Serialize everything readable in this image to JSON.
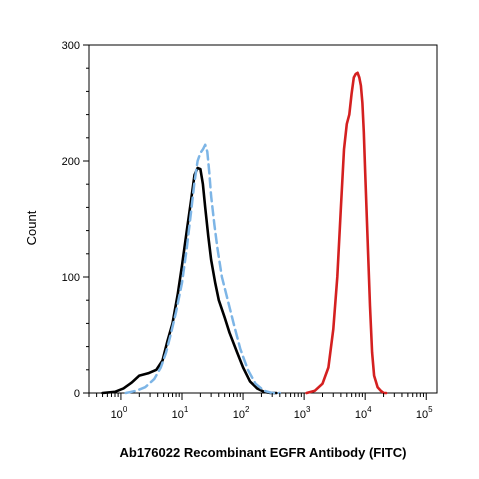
{
  "chart_data": {
    "type": "line",
    "xlabel": "Ab176022 Recombinant EGFR Antibody (FITC)",
    "ylabel": "Count",
    "x_scale": "log",
    "xlim": [
      0.3,
      150000
    ],
    "ylim": [
      0,
      300
    ],
    "grid": false,
    "x_ticks": [
      {
        "base": "10",
        "exp": "0",
        "value": 1
      },
      {
        "base": "10",
        "exp": "1",
        "value": 10
      },
      {
        "base": "10",
        "exp": "2",
        "value": 100
      },
      {
        "base": "10",
        "exp": "3",
        "value": 1000
      },
      {
        "base": "10",
        "exp": "4",
        "value": 10000
      },
      {
        "base": "10",
        "exp": "5",
        "value": 100000
      }
    ],
    "y_ticks": [
      {
        "label": "0",
        "value": 0
      },
      {
        "label": "100",
        "value": 100
      },
      {
        "label": "200",
        "value": 200
      },
      {
        "label": "300",
        "value": 300
      }
    ],
    "series": [
      {
        "color": "#000000",
        "style": "solid",
        "x": [
          0.5,
          0.8,
          1.1,
          1.5,
          2.0,
          2.8,
          3.8,
          4.8,
          5.8,
          7.0,
          8.5,
          10,
          12,
          14,
          16,
          18,
          20,
          22,
          24,
          27,
          30,
          35,
          40,
          50,
          60,
          80,
          100,
          130,
          170,
          220,
          280,
          350
        ],
        "values": [
          0,
          1,
          4,
          9,
          15,
          17,
          20,
          28,
          45,
          60,
          85,
          110,
          140,
          165,
          188,
          194,
          193,
          180,
          160,
          135,
          115,
          95,
          80,
          65,
          52,
          35,
          22,
          10,
          4,
          1,
          0,
          0
        ]
      },
      {
        "color": "#7db5e6",
        "style": "dashed",
        "x": [
          1.2,
          1.8,
          2.5,
          3.5,
          4.5,
          5.5,
          6.5,
          8,
          10,
          12,
          14,
          16,
          18,
          20,
          22,
          24,
          26,
          28,
          30,
          34,
          38,
          45,
          55,
          70,
          90,
          120,
          160,
          220,
          300,
          400
        ],
        "values": [
          0,
          2,
          5,
          12,
          22,
          35,
          50,
          70,
          95,
          125,
          155,
          182,
          200,
          207,
          210,
          214,
          208,
          190,
          170,
          145,
          125,
          100,
          82,
          60,
          38,
          20,
          8,
          2,
          0,
          0
        ]
      },
      {
        "color": "#d42020",
        "style": "solid",
        "x": [
          1100,
          1500,
          2000,
          2500,
          3000,
          3500,
          4000,
          4500,
          5000,
          5500,
          6000,
          6500,
          7000,
          7500,
          8000,
          8500,
          9000,
          9500,
          10000,
          11000,
          12000,
          13000,
          14000,
          16000,
          18000,
          20000,
          22000
        ],
        "values": [
          0,
          2,
          8,
          22,
          55,
          100,
          160,
          210,
          232,
          240,
          258,
          272,
          275,
          276,
          272,
          265,
          250,
          225,
          190,
          130,
          75,
          35,
          15,
          5,
          2,
          0,
          0
        ]
      }
    ]
  }
}
